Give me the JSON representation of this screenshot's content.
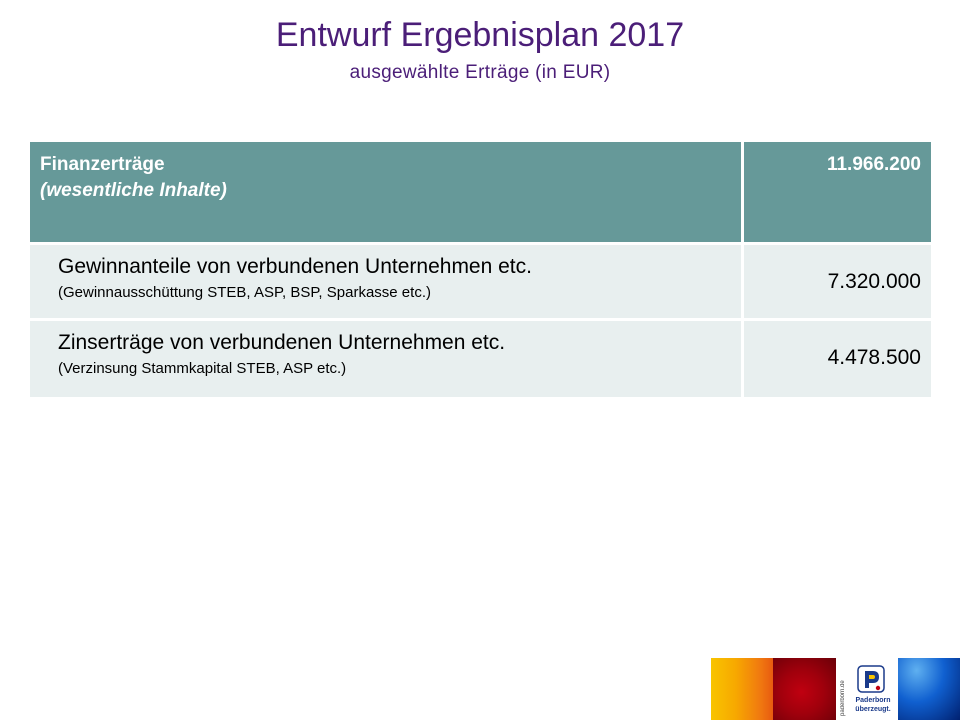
{
  "slide": {
    "title": "Entwurf Ergebnisplan 2017",
    "subtitle": "ausgewählte Erträge (in EUR)"
  },
  "table": {
    "header": {
      "label_line1": "Finanzerträge",
      "label_line2": "(wesentliche Inhalte)",
      "value": "11.966.200"
    },
    "rows": [
      {
        "label": "Gewinnanteile von verbundenen Unternehmen etc.",
        "note": "(Gewinnausschüttung STEB, ASP, BSP, Sparkasse etc.)",
        "value": "7.320.000"
      },
      {
        "label": "Zinserträge von verbundenen Unternehmen etc.",
        "note": "(Verzinsung Stammkapital STEB, ASP etc.)",
        "value": "4.478.500"
      }
    ]
  },
  "branding": {
    "vertical_text": "paderborn.de",
    "caption_line1": "Paderborn",
    "caption_line2": "überzeugt.",
    "logo_icon": "paderborn-p-logo-icon"
  },
  "colors": {
    "title": "#4b1e78",
    "header_bg": "#669999",
    "row_bg": "#e8efef"
  }
}
